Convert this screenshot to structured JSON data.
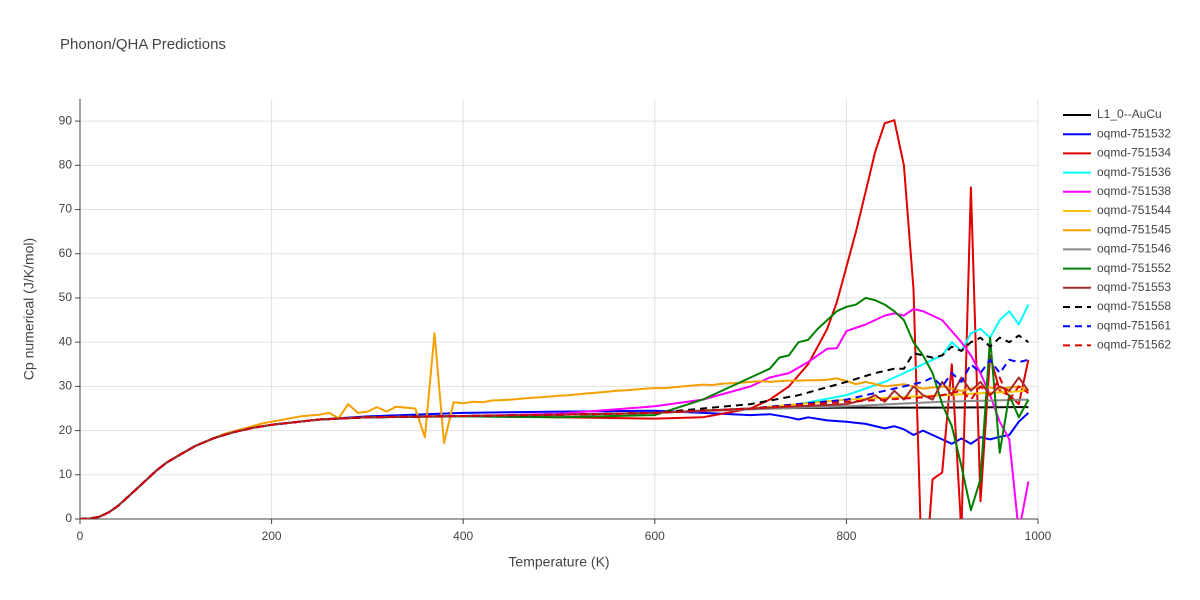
{
  "chart_data": {
    "type": "line",
    "title": "Phonon/QHA Predictions",
    "x_label": "Temperature (K)",
    "y_label": "Cp numerical (J/K/mol)",
    "xlim": [
      0,
      1000
    ],
    "xticks": [
      0,
      200,
      400,
      600,
      800,
      1000
    ],
    "ylim": [
      0,
      95
    ],
    "yticks": [
      0,
      10,
      20,
      30,
      40,
      50,
      60,
      70,
      80,
      90
    ],
    "grid": true,
    "legend": "right",
    "series": [
      {
        "name": "L1_0--AuCu",
        "color": "#000000",
        "dash": "solid",
        "x": [
          0,
          10,
          20,
          30,
          40,
          50,
          60,
          70,
          80,
          90,
          100,
          120,
          140,
          160,
          180,
          200,
          250,
          300,
          400,
          500,
          600,
          700,
          800,
          900,
          990
        ],
        "values": [
          0,
          0.1,
          0.5,
          1.5,
          3,
          5,
          7,
          9,
          11,
          12.7,
          14,
          16.5,
          18.3,
          19.6,
          20.6,
          21.3,
          22.5,
          23,
          23.3,
          23.6,
          24,
          25,
          25.2,
          25.2,
          25.3
        ]
      },
      {
        "name": "oqmd-751532",
        "color": "#0000ff",
        "dash": "solid",
        "x": [
          0,
          10,
          20,
          30,
          40,
          50,
          60,
          70,
          80,
          90,
          100,
          120,
          140,
          160,
          180,
          200,
          250,
          300,
          400,
          500,
          600,
          650,
          700,
          720,
          740,
          750,
          760,
          780,
          800,
          820,
          840,
          850,
          860,
          870,
          880,
          890,
          900,
          910,
          920,
          930,
          940,
          950,
          960,
          970,
          980,
          990
        ],
        "values": [
          0,
          0.1,
          0.5,
          1.5,
          3,
          5,
          7,
          9,
          11,
          12.7,
          14,
          16.5,
          18.3,
          19.6,
          20.6,
          21.3,
          22.5,
          23.2,
          24,
          24.3,
          24.5,
          24,
          23.5,
          23.7,
          23,
          22.5,
          23,
          22.3,
          22,
          21.5,
          20.5,
          21,
          20.3,
          19,
          20,
          19,
          18,
          17,
          18.2,
          17,
          18.5,
          18,
          18.6,
          19,
          22,
          24
        ]
      },
      {
        "name": "oqmd-751534",
        "color": "#e00000",
        "dash": "solid",
        "x": [
          0,
          10,
          20,
          30,
          40,
          50,
          60,
          70,
          80,
          90,
          100,
          120,
          140,
          160,
          180,
          200,
          250,
          300,
          400,
          500,
          600,
          650,
          700,
          720,
          740,
          760,
          770,
          780,
          790,
          800,
          810,
          820,
          830,
          840,
          850,
          860,
          870,
          880,
          890,
          900,
          910,
          920,
          930,
          940,
          950,
          960,
          970,
          980,
          990
        ],
        "values": [
          0,
          0.1,
          0.5,
          1.5,
          3,
          5,
          7,
          9,
          11,
          12.7,
          14,
          16.5,
          18.3,
          19.6,
          20.6,
          21.3,
          22.5,
          23,
          23.3,
          23,
          22.7,
          23,
          25,
          27,
          30,
          35,
          39,
          43,
          49,
          57,
          65,
          74,
          83,
          89.5,
          90.2,
          80,
          52,
          -20,
          9,
          10.5,
          35,
          -3,
          75,
          4,
          37,
          29,
          28,
          26,
          36
        ]
      },
      {
        "name": "oqmd-751536",
        "color": "#00ffff",
        "dash": "solid",
        "x": [
          0,
          10,
          20,
          30,
          40,
          50,
          60,
          70,
          80,
          90,
          100,
          120,
          140,
          160,
          180,
          200,
          250,
          300,
          400,
          500,
          600,
          700,
          750,
          800,
          840,
          860,
          880,
          890,
          900,
          910,
          920,
          930,
          940,
          950,
          960,
          970,
          980,
          990
        ],
        "values": [
          0,
          0.1,
          0.5,
          1.5,
          3,
          5,
          7,
          9,
          11,
          12.7,
          14,
          16.5,
          18.3,
          19.6,
          20.6,
          21.3,
          22.5,
          23,
          23.3,
          23.6,
          24,
          25,
          26,
          28,
          31,
          33,
          35,
          36,
          37,
          40,
          38,
          42,
          43,
          41,
          45,
          47,
          44,
          48.5
        ]
      },
      {
        "name": "oqmd-751538",
        "color": "#ff00ff",
        "dash": "solid",
        "x": [
          0,
          10,
          20,
          30,
          40,
          50,
          60,
          70,
          80,
          90,
          100,
          120,
          140,
          160,
          180,
          200,
          250,
          300,
          400,
          500,
          600,
          650,
          700,
          720,
          740,
          760,
          780,
          790,
          800,
          820,
          840,
          850,
          860,
          870,
          880,
          900,
          920,
          930,
          940,
          950,
          960,
          970,
          980,
          990
        ],
        "values": [
          0,
          0.1,
          0.5,
          1.5,
          3,
          5,
          7,
          9,
          11,
          12.7,
          14,
          16.5,
          18.3,
          19.6,
          20.6,
          21.3,
          22.5,
          23,
          23.3,
          23.8,
          25.5,
          27,
          30,
          32,
          33,
          35.5,
          38.5,
          38.6,
          42.5,
          44,
          46,
          46.5,
          46,
          47.5,
          47,
          45,
          40,
          37,
          33,
          28,
          22,
          18,
          -3,
          8.5
        ]
      },
      {
        "name": "oqmd-751544",
        "color": "#f7c600",
        "dash": "solid",
        "x": [
          0,
          10,
          20,
          30,
          40,
          50,
          60,
          70,
          80,
          90,
          100,
          120,
          140,
          160,
          180,
          200,
          250,
          300,
          400,
          500,
          600,
          700,
          800,
          900,
          990
        ],
        "values": [
          0,
          0.1,
          0.5,
          1.5,
          3,
          5,
          7,
          9,
          11,
          12.7,
          14,
          16.5,
          18.3,
          19.6,
          20.6,
          21.3,
          22.5,
          23,
          23.3,
          23.6,
          24,
          25,
          27,
          28,
          29
        ]
      },
      {
        "name": "oqmd-751545",
        "color": "#f5a000",
        "dash": "solid",
        "x": [
          0,
          10,
          20,
          30,
          40,
          50,
          60,
          70,
          80,
          90,
          100,
          120,
          140,
          150,
          160,
          170,
          180,
          190,
          200,
          210,
          220,
          230,
          240,
          250,
          260,
          270,
          280,
          290,
          300,
          310,
          320,
          330,
          340,
          350,
          360,
          370,
          380,
          390,
          400,
          410,
          420,
          430,
          440,
          450,
          460,
          470,
          480,
          490,
          500,
          510,
          520,
          530,
          540,
          550,
          560,
          570,
          580,
          590,
          600,
          610,
          620,
          630,
          640,
          650,
          660,
          670,
          680,
          690,
          700,
          710,
          720,
          730,
          740,
          750,
          760,
          770,
          780,
          790,
          800,
          810,
          820,
          840,
          860,
          880,
          900,
          920,
          940,
          960,
          980,
          990
        ],
        "values": [
          0,
          0.1,
          0.5,
          1.5,
          3,
          5,
          7,
          9,
          11,
          12.7,
          14,
          16.5,
          18.3,
          19.2,
          19.8,
          20.4,
          21,
          21.6,
          22,
          22.4,
          22.8,
          23.2,
          23.4,
          23.6,
          24,
          22.8,
          26,
          24,
          24.3,
          25.3,
          24.3,
          25.4,
          25.2,
          25,
          18.5,
          42,
          17.2,
          26.4,
          26.2,
          26.5,
          26.4,
          26.8,
          26.9,
          27,
          27.2,
          27.4,
          27.5,
          27.7,
          27.9,
          28,
          28.2,
          28.4,
          28.6,
          28.8,
          29,
          29.1,
          29.3,
          29.5,
          29.6,
          29.6,
          29.8,
          30,
          30.2,
          30.4,
          30.3,
          30.6,
          30.7,
          30.8,
          31,
          31.2,
          31,
          31.2,
          31.3,
          31.3,
          31.4,
          31.4,
          31.5,
          31.8,
          31.2,
          30.5,
          31,
          30,
          30.5,
          29.5,
          30,
          29,
          30,
          29.5,
          30,
          29
        ]
      },
      {
        "name": "oqmd-751546",
        "color": "#888888",
        "dash": "solid",
        "x": [
          0,
          10,
          20,
          30,
          40,
          50,
          60,
          70,
          80,
          90,
          100,
          120,
          140,
          160,
          180,
          200,
          250,
          300,
          400,
          500,
          600,
          700,
          800,
          900,
          990
        ],
        "values": [
          0,
          0.1,
          0.5,
          1.5,
          3,
          5,
          7,
          9,
          11,
          12.7,
          14,
          16.5,
          18.3,
          19.6,
          20.6,
          21.3,
          22.5,
          23,
          23.3,
          23.6,
          24,
          24.8,
          25.5,
          26.5,
          27
        ]
      },
      {
        "name": "oqmd-751552",
        "color": "#008000",
        "dash": "solid",
        "x": [
          0,
          10,
          20,
          30,
          40,
          50,
          60,
          70,
          80,
          90,
          100,
          120,
          140,
          160,
          180,
          200,
          250,
          300,
          400,
          500,
          600,
          650,
          700,
          720,
          730,
          740,
          750,
          760,
          770,
          780,
          790,
          800,
          810,
          820,
          830,
          840,
          850,
          860,
          870,
          880,
          890,
          900,
          910,
          920,
          930,
          940,
          950,
          960,
          970,
          980,
          990
        ],
        "values": [
          0,
          0.1,
          0.5,
          1.5,
          3,
          5,
          7,
          9,
          11,
          12.7,
          14,
          16.5,
          18.3,
          19.6,
          20.6,
          21.3,
          22.5,
          23,
          23.2,
          23,
          23.5,
          27,
          32,
          34,
          36.5,
          37,
          40,
          40.5,
          43,
          45,
          47,
          48,
          48.5,
          50,
          49.5,
          48.5,
          47,
          45,
          40,
          37,
          33,
          26,
          21,
          12,
          2,
          9,
          41,
          15,
          28,
          23,
          27
        ]
      },
      {
        "name": "oqmd-751553",
        "color": "#a52a2a",
        "dash": "solid",
        "x": [
          0,
          10,
          20,
          30,
          40,
          50,
          60,
          70,
          80,
          90,
          100,
          120,
          140,
          160,
          180,
          200,
          250,
          300,
          400,
          500,
          600,
          700,
          800,
          820,
          830,
          840,
          850,
          860,
          870,
          880,
          890,
          900,
          910,
          920,
          930,
          940,
          950,
          960,
          970,
          980,
          990
        ],
        "values": [
          0,
          0.1,
          0.5,
          1.5,
          3,
          5,
          7,
          9,
          11,
          12.7,
          14,
          16.5,
          18.3,
          19.6,
          20.6,
          21.3,
          22.5,
          23,
          23.3,
          23.6,
          24,
          25,
          26,
          27,
          28,
          26.5,
          29,
          27,
          30,
          28,
          27,
          31,
          28,
          32,
          29,
          31,
          28,
          30,
          29,
          32,
          29
        ]
      },
      {
        "name": "oqmd-751558",
        "color": "#000000",
        "dash": "dash",
        "x": [
          0,
          10,
          20,
          30,
          40,
          50,
          60,
          70,
          80,
          90,
          100,
          120,
          140,
          160,
          180,
          200,
          250,
          300,
          400,
          500,
          600,
          700,
          750,
          800,
          830,
          850,
          860,
          870,
          880,
          890,
          900,
          910,
          920,
          930,
          940,
          950,
          960,
          970,
          980,
          990
        ],
        "values": [
          0,
          0.1,
          0.5,
          1.5,
          3,
          5,
          7,
          9,
          11,
          12.7,
          14,
          16.5,
          18.3,
          19.6,
          20.6,
          21.3,
          22.5,
          23,
          23.3,
          23.6,
          24,
          26,
          28,
          31,
          33,
          34,
          34,
          37.5,
          37,
          36.5,
          37,
          39,
          38,
          40,
          41,
          39,
          41,
          40,
          41.5,
          40
        ]
      },
      {
        "name": "oqmd-751561",
        "color": "#0000ff",
        "dash": "dash",
        "x": [
          0,
          10,
          20,
          30,
          40,
          50,
          60,
          70,
          80,
          90,
          100,
          120,
          140,
          160,
          180,
          200,
          250,
          300,
          400,
          500,
          600,
          700,
          800,
          850,
          880,
          890,
          900,
          910,
          920,
          930,
          940,
          950,
          960,
          970,
          980,
          990
        ],
        "values": [
          0,
          0.1,
          0.5,
          1.5,
          3,
          5,
          7,
          9,
          11,
          12.7,
          14,
          16.5,
          18.3,
          19.6,
          20.6,
          21.3,
          22.5,
          23,
          23.3,
          23.6,
          24,
          25,
          27,
          29.5,
          31,
          32,
          30,
          33,
          31,
          35,
          33,
          36,
          33,
          36,
          35.5,
          36
        ]
      },
      {
        "name": "oqmd-751562",
        "color": "#e00000",
        "dash": "dash",
        "x": [
          0,
          10,
          20,
          30,
          40,
          50,
          60,
          70,
          80,
          90,
          100,
          120,
          140,
          160,
          180,
          200,
          250,
          300,
          400,
          500,
          600,
          700,
          800,
          880,
          900,
          920,
          930,
          940,
          950,
          960,
          970,
          980,
          990
        ],
        "values": [
          0,
          0.1,
          0.5,
          1.5,
          3,
          5,
          7,
          9,
          11,
          12.7,
          14,
          16.5,
          18.3,
          19.6,
          20.6,
          21.3,
          22.5,
          23,
          23.3,
          23.6,
          24,
          25,
          26.5,
          27.5,
          28,
          29,
          27,
          30,
          28,
          32,
          27,
          30,
          28.5
        ]
      }
    ]
  }
}
